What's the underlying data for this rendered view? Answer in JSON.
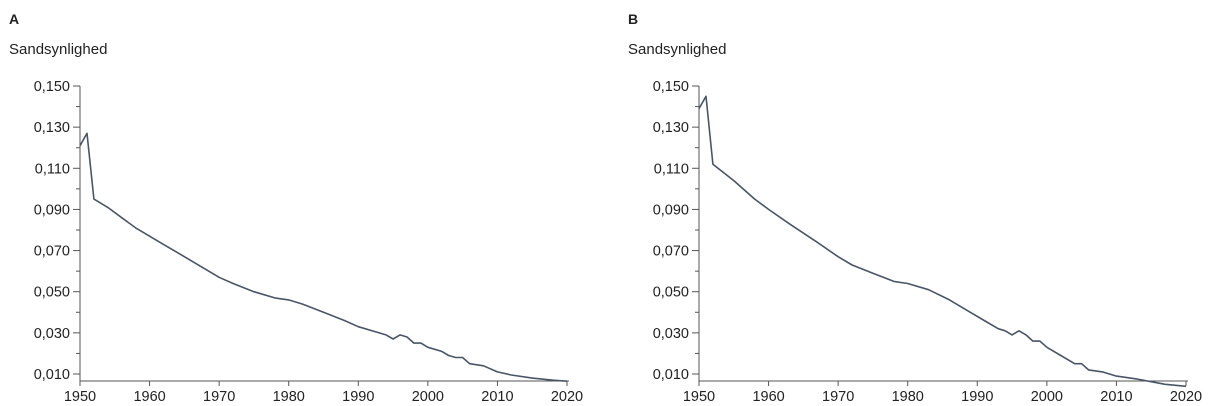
{
  "panels": [
    {
      "letter": "A",
      "ylabel": "Sandsynlighed",
      "chart_data": {
        "type": "line",
        "xlabel": "",
        "ylabel": "Sandsynlighed",
        "xlim": [
          1950,
          2020
        ],
        "ylim": [
          0.01,
          0.15
        ],
        "xticks": [
          1950,
          1960,
          1970,
          1980,
          1990,
          2000,
          2010,
          2020
        ],
        "xtick_labels": [
          "1950",
          "1960",
          "1970",
          "1980",
          "1990",
          "2000",
          "2010",
          "2020"
        ],
        "yticks": [
          0.01,
          0.03,
          0.05,
          0.07,
          0.09,
          0.11,
          0.13,
          0.15
        ],
        "ytick_labels": [
          "0,010",
          "0,030",
          "0,050",
          "0,070",
          "0,090",
          "0,110",
          "0,130",
          "0,150"
        ],
        "minor_yticks": [
          0.02,
          0.04,
          0.06,
          0.08,
          0.1,
          0.12,
          0.14
        ],
        "series": [
          {
            "color": "#4a5568",
            "x": [
              1950,
              1951,
              1952,
              1954,
              1956,
              1958,
              1960,
              1962,
              1965,
              1968,
              1970,
              1972,
              1975,
              1978,
              1980,
              1982,
              1985,
              1988,
              1990,
              1993,
              1994,
              1995,
              1996,
              1997,
              1998,
              1999,
              2000,
              2002,
              2003,
              2004,
              2005,
              2006,
              2008,
              2010,
              2012,
              2015,
              2018,
              2020
            ],
            "y": [
              0.121,
              0.127,
              0.095,
              0.091,
              0.086,
              0.081,
              0.077,
              0.073,
              0.067,
              0.061,
              0.057,
              0.054,
              0.05,
              0.047,
              0.046,
              0.044,
              0.04,
              0.036,
              0.033,
              0.03,
              0.029,
              0.027,
              0.029,
              0.028,
              0.025,
              0.025,
              0.023,
              0.021,
              0.019,
              0.018,
              0.018,
              0.015,
              0.014,
              0.011,
              0.0095,
              0.008,
              0.007,
              0.0065
            ]
          }
        ]
      }
    },
    {
      "letter": "B",
      "ylabel": "Sandsynlighed",
      "chart_data": {
        "type": "line",
        "xlabel": "",
        "ylabel": "Sandsynlighed",
        "xlim": [
          1950,
          2020
        ],
        "ylim": [
          0.01,
          0.15
        ],
        "xticks": [
          1950,
          1960,
          1970,
          1980,
          1990,
          2000,
          2010,
          2020
        ],
        "xtick_labels": [
          "1950",
          "1960",
          "1970",
          "1980",
          "1990",
          "2000",
          "2010",
          "2020"
        ],
        "yticks": [
          0.01,
          0.03,
          0.05,
          0.07,
          0.09,
          0.11,
          0.13,
          0.15
        ],
        "ytick_labels": [
          "0,010",
          "0,030",
          "0,050",
          "0,070",
          "0,090",
          "0,110",
          "0,130",
          "0,150"
        ],
        "minor_yticks": [
          0.02,
          0.04,
          0.06,
          0.08,
          0.1,
          0.12,
          0.14
        ],
        "series": [
          {
            "color": "#4a5568",
            "x": [
              1950,
              1951,
              1952,
              1955,
              1958,
              1960,
              1963,
              1967,
              1970,
              1972,
              1975,
              1978,
              1980,
              1983,
              1986,
              1989,
              1991,
              1993,
              1994,
              1995,
              1996,
              1997,
              1998,
              1999,
              2000,
              2002,
              2004,
              2005,
              2006,
              2008,
              2010,
              2013,
              2017,
              2020
            ],
            "y": [
              0.139,
              0.145,
              0.112,
              0.104,
              0.095,
              0.09,
              0.083,
              0.074,
              0.067,
              0.063,
              0.059,
              0.055,
              0.054,
              0.051,
              0.046,
              0.04,
              0.036,
              0.032,
              0.031,
              0.029,
              0.031,
              0.029,
              0.026,
              0.026,
              0.023,
              0.019,
              0.015,
              0.015,
              0.012,
              0.011,
              0.009,
              0.0075,
              0.005,
              0.004
            ]
          }
        ]
      }
    }
  ]
}
